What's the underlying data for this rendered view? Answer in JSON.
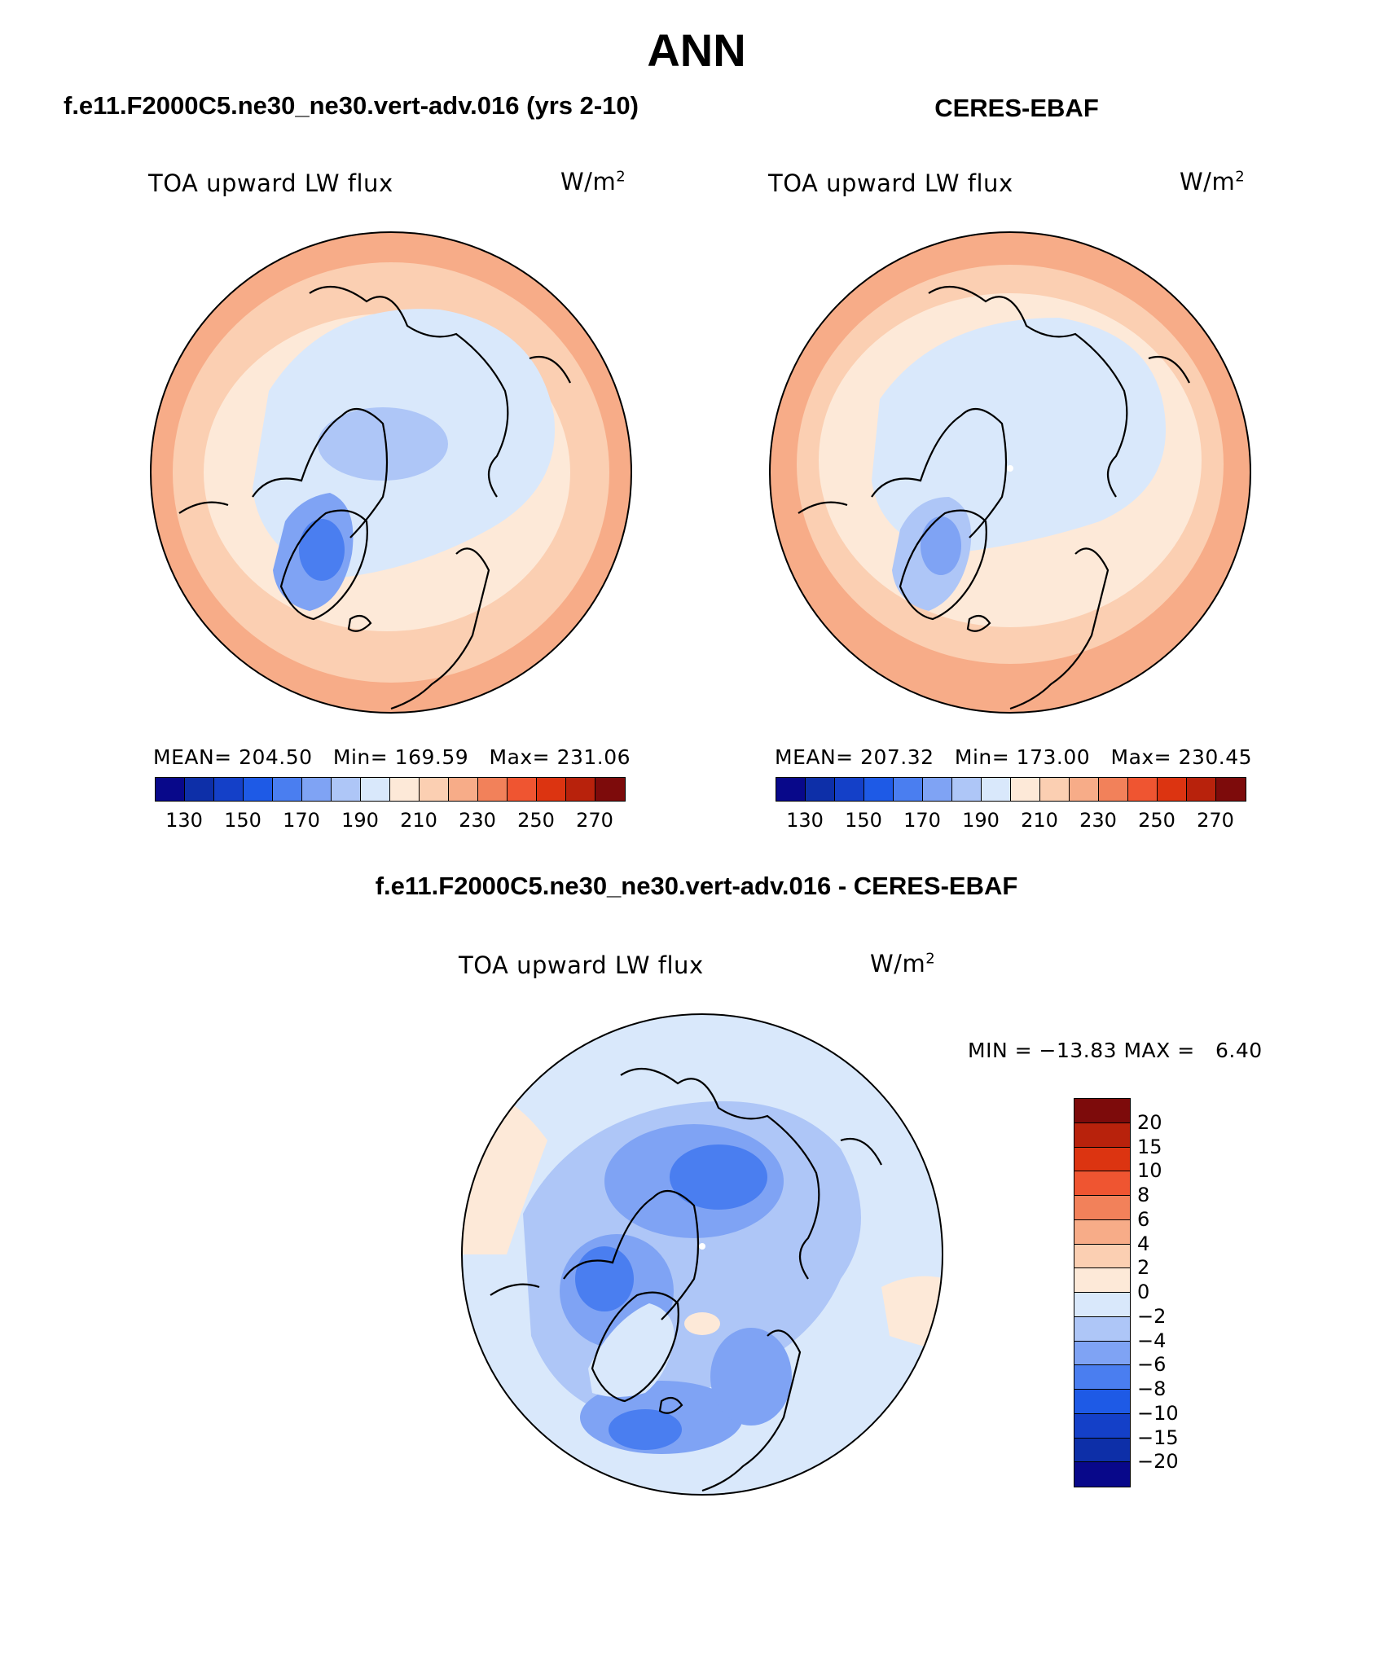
{
  "page": {
    "title": "ANN",
    "case_title": "f.e11.F2000C5.ne30_ne30.vert-adv.016 (yrs 2-10)",
    "obs_title": "CERES-EBAF",
    "diff_title": "f.e11.F2000C5.ne30_ne30.vert-adv.016 - CERES-EBAF"
  },
  "chart_data": [
    {
      "type": "heatmap",
      "projection": "north-polar-stereographic",
      "variable": "TOA upward LW flux",
      "units_base": "W/m",
      "units_exp": "2",
      "stats": {
        "mean_label": "MEAN=",
        "mean": "204.50",
        "min_label": "Min=",
        "min": "169.59",
        "max_label": "Max=",
        "max": "231.06"
      },
      "colorbar": {
        "levels": [
          130,
          140,
          150,
          160,
          170,
          180,
          190,
          200,
          210,
          220,
          230,
          240,
          250,
          260,
          270
        ],
        "tick_labels": [
          "130",
          "150",
          "170",
          "190",
          "210",
          "230",
          "250",
          "270"
        ],
        "colors": [
          "#08088a",
          "#0d2fa8",
          "#1440c8",
          "#1e5ae6",
          "#4a7ef0",
          "#7fa3f4",
          "#aec6f7",
          "#d9e8fb",
          "#fde9d8",
          "#fbcfb2",
          "#f7ac88",
          "#f2815a",
          "#ef5531",
          "#dc3411",
          "#b8220c",
          "#7d0b0b"
        ]
      }
    },
    {
      "type": "heatmap",
      "projection": "north-polar-stereographic",
      "variable": "TOA upward LW flux",
      "units_base": "W/m",
      "units_exp": "2",
      "stats": {
        "mean_label": "MEAN=",
        "mean": "207.32",
        "min_label": "Min=",
        "min": "173.00",
        "max_label": "Max=",
        "max": "230.45"
      },
      "colorbar": {
        "levels": [
          130,
          140,
          150,
          160,
          170,
          180,
          190,
          200,
          210,
          220,
          230,
          240,
          250,
          260,
          270
        ],
        "tick_labels": [
          "130",
          "150",
          "170",
          "190",
          "210",
          "230",
          "250",
          "270"
        ],
        "colors": [
          "#08088a",
          "#0d2fa8",
          "#1440c8",
          "#1e5ae6",
          "#4a7ef0",
          "#7fa3f4",
          "#aec6f7",
          "#d9e8fb",
          "#fde9d8",
          "#fbcfb2",
          "#f7ac88",
          "#f2815a",
          "#ef5531",
          "#dc3411",
          "#b8220c",
          "#7d0b0b"
        ]
      }
    },
    {
      "type": "heatmap",
      "projection": "north-polar-stereographic",
      "variable": "TOA upward LW flux",
      "units_base": "W/m",
      "units_exp": "2",
      "stats": {
        "min_label": "MIN =",
        "min": "−13.83",
        "max_label": "MAX =",
        "max": "6.40"
      },
      "colorbar": {
        "levels": [
          -20,
          -15,
          -10,
          -8,
          -6,
          -4,
          -2,
          0,
          2,
          4,
          6,
          8,
          10,
          15,
          20
        ],
        "tick_labels": [
          "20",
          "15",
          "10",
          "8",
          "6",
          "4",
          "2",
          "0",
          "−2",
          "−4",
          "−6",
          "−8",
          "−10",
          "−15",
          "−20"
        ],
        "colors": [
          "#08088a",
          "#0d2fa8",
          "#1440c8",
          "#1e5ae6",
          "#4a7ef0",
          "#7fa3f4",
          "#aec6f7",
          "#d9e8fb",
          "#fde9d8",
          "#fbcfb2",
          "#f7ac88",
          "#f2815a",
          "#ef5531",
          "#dc3411",
          "#b8220c",
          "#7d0b0b"
        ]
      }
    }
  ]
}
